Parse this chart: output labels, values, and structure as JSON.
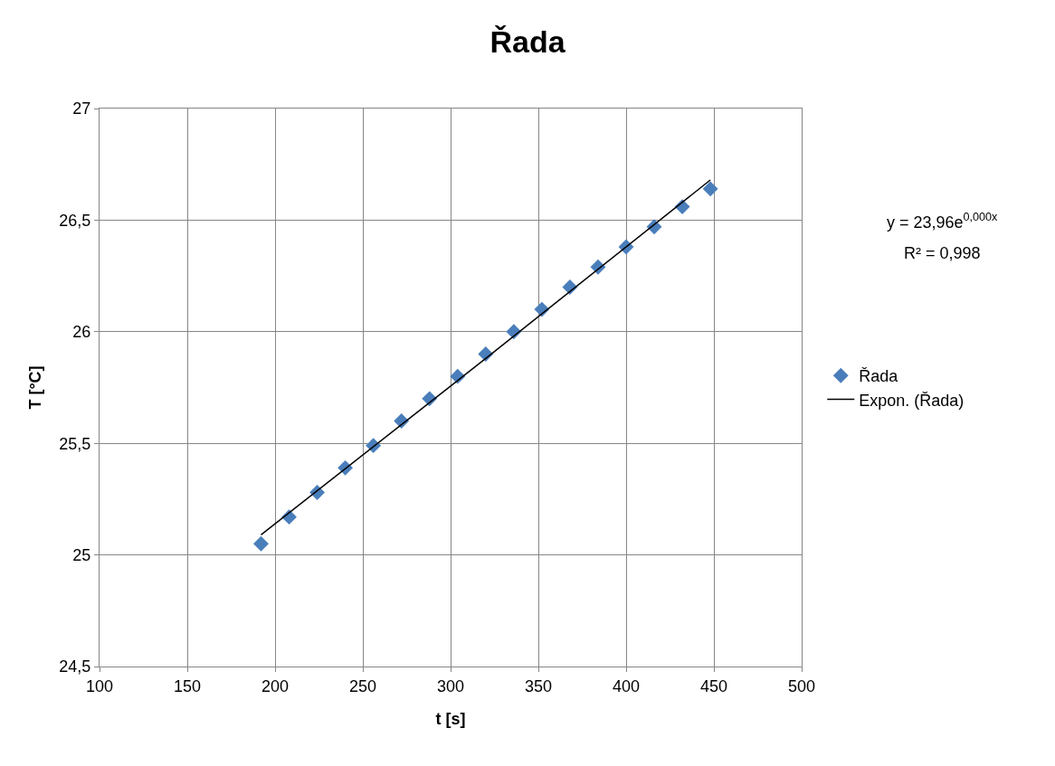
{
  "chart_data": {
    "type": "scatter",
    "title": "Řada",
    "xlabel": "t [s]",
    "ylabel": "T [°C]",
    "xlim": [
      100,
      500
    ],
    "xticks": [
      100,
      150,
      200,
      250,
      300,
      350,
      400,
      450,
      500
    ],
    "ylim": [
      24.5,
      27
    ],
    "yticks": [
      {
        "value": 24.5,
        "label": "24,5"
      },
      25,
      {
        "value": 25.5,
        "label": "25,5"
      },
      26,
      {
        "value": 26.5,
        "label": "26,5"
      },
      27
    ],
    "grid": true,
    "legend": "right",
    "marker": "diamond",
    "series": [
      {
        "name": "Řada",
        "color": "#4a7ebb",
        "x": [
          192,
          208,
          224,
          240,
          256,
          272,
          288,
          304,
          320,
          336,
          352,
          368,
          384,
          400,
          416,
          432,
          448
        ],
        "values": [
          25.05,
          25.17,
          25.28,
          25.39,
          25.49,
          25.6,
          25.7,
          25.8,
          25.9,
          26.0,
          26.1,
          26.2,
          26.29,
          26.38,
          26.47,
          26.56,
          26.64
        ]
      },
      {
        "name": "Expon. (Řada)",
        "type": "line",
        "color": "#000000",
        "marker": "none",
        "x": [
          192,
          320,
          448
        ],
        "values": [
          25.09,
          25.88,
          26.68
        ]
      }
    ],
    "annotations": [
      "y = 23,96e$^{0,000x}$",
      "R² = 0,998"
    ]
  }
}
